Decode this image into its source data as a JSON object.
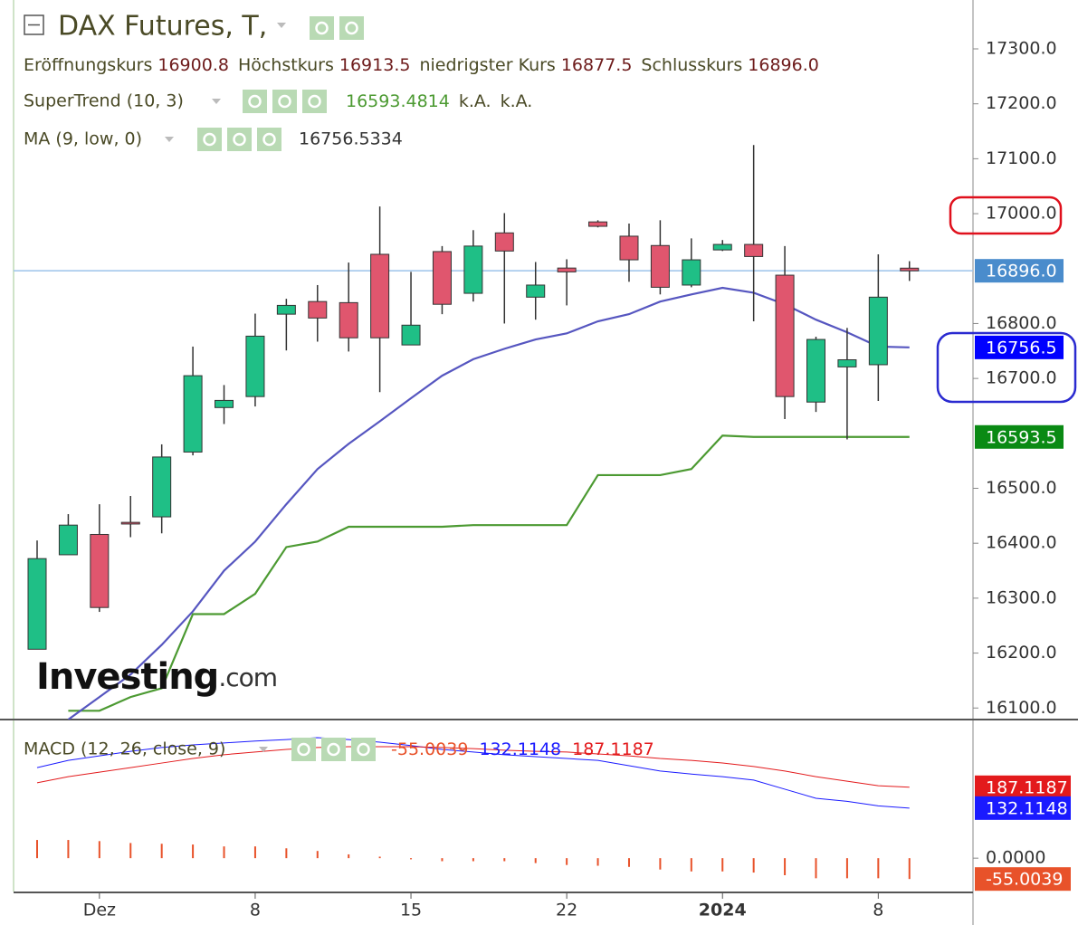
{
  "chart_data": [
    {
      "type": "candlestick",
      "title": "DAX Futures, T,",
      "legend": [
        {
          "name": "Eröffnungskurs",
          "value": "16900.8"
        },
        {
          "name": "Höchstkurs",
          "value": "16913.5"
        },
        {
          "name": "niedrigster Kurs",
          "value": "16877.5"
        },
        {
          "name": "Schlusskurs",
          "value": "16896.0"
        }
      ],
      "categories": [
        null,
        null,
        "Dez",
        null,
        null,
        null,
        null,
        "8",
        null,
        null,
        null,
        null,
        "15",
        null,
        null,
        null,
        null,
        "22",
        null,
        null,
        null,
        null,
        "2024",
        null,
        null,
        null,
        null,
        "8",
        null
      ],
      "open": [
        16207,
        16379,
        16416,
        16438,
        16448,
        16566,
        16647,
        16667,
        16817,
        16840,
        16838,
        16926,
        16761,
        16931,
        16855,
        16965,
        16848,
        16901,
        16985,
        16959,
        16942,
        16870,
        16934,
        16944,
        16888,
        16657,
        16721,
        16725,
        16900.8
      ],
      "high": [
        16405,
        16453,
        16471,
        16486,
        16580,
        16758,
        16688,
        16818,
        16845,
        16870,
        16911,
        17013,
        16894,
        16941,
        16970,
        17001,
        16912,
        16917,
        16988,
        16982,
        16988,
        16955,
        16952,
        17125,
        16941,
        16776,
        16792,
        16926,
        16913.5
      ],
      "low": [
        16207,
        16379,
        16275,
        16411,
        16418,
        16560,
        16617,
        16649,
        16751,
        16767,
        16749,
        16675,
        16761,
        16817,
        16840,
        16800,
        16807,
        16833,
        16975,
        16876,
        16853,
        16866,
        16932,
        16804,
        16626,
        16639,
        16589,
        16659,
        16877.5
      ],
      "close": [
        16372,
        16433,
        16283,
        16435,
        16557,
        16705,
        16660,
        16777,
        16833,
        16810,
        16774,
        16774,
        16797,
        16835,
        16941,
        16932,
        16870,
        16894,
        16977,
        16916,
        16866,
        16916,
        16944,
        16922,
        16667,
        16771,
        16734,
        16848,
        16896
      ],
      "up_color": "#1fbf86",
      "down_color": "#e0566e",
      "lines": [
        {
          "name": "SuperTrend (10, 3)",
          "color": "#4c9a32",
          "extra": [
            "k.A.",
            "k.A."
          ],
          "values": [
            null,
            16095,
            16095,
            16120,
            16136,
            16271,
            16271,
            16308,
            16393,
            16403,
            16430,
            16430,
            16430,
            16430,
            16433,
            16433,
            16433,
            16433,
            16524,
            16524,
            16524,
            16535,
            16596,
            16593.4814,
            16593.4814,
            16593.4814,
            16593.4814,
            16593.4814,
            16593.4814
          ]
        },
        {
          "name": "MA (9, low, 0)",
          "color": "#5656c0",
          "values": [
            null,
            16079,
            16120,
            16161,
            16215,
            16276,
            16350,
            16403,
            16471,
            16535,
            16581,
            16622,
            16664,
            16705,
            16735,
            16754,
            16771,
            16782,
            16804,
            16817,
            16840,
            16853,
            16865,
            16856,
            16835,
            16807,
            16784,
            16758,
            16756.5334
          ]
        }
      ],
      "price_boxes": [
        {
          "value": 16896,
          "label": "16896.0",
          "color": "#4a8ccc"
        },
        {
          "value": 16756.5,
          "label": "16756.5",
          "color": "#0000ff"
        },
        {
          "value": 16593.5,
          "label": "16593.5",
          "color": "#0a8a14"
        }
      ],
      "ylim": [
        16079,
        17389
      ],
      "yticks": [
        {
          "value": 16100,
          "label": "16100.0"
        },
        {
          "value": 16200,
          "label": "16200.0"
        },
        {
          "value": 16300,
          "label": "16300.0"
        },
        {
          "value": 16400,
          "label": "16400.0"
        },
        {
          "value": 16500,
          "label": "16500.0"
        },
        {
          "value": 16700,
          "label": "16700.0"
        },
        {
          "value": 16800,
          "label": "16800.0"
        },
        {
          "value": 17000,
          "label": "17000.0"
        },
        {
          "value": 17100,
          "label": "17100.0"
        },
        {
          "value": 17200,
          "label": "17200.0"
        },
        {
          "value": 17300,
          "label": "17300.0"
        }
      ],
      "watermark": [
        "Investing",
        ".com"
      ]
    },
    {
      "type": "macd",
      "title": "MACD (12, 26, close, 9)",
      "series": [
        {
          "color": "#1a1aff",
          "values": [
            239,
            258,
            270,
            282,
            292,
            299,
            304,
            309,
            313,
            318,
            313,
            306,
            297,
            287,
            280,
            273,
            268,
            263,
            258,
            244,
            230,
            222,
            215,
            206,
            182,
            158,
            150,
            138,
            132.1148
          ]
        },
        {
          "color": "#e31a1c",
          "values": [
            199,
            215,
            227,
            239,
            251,
            263,
            273,
            280,
            287,
            292,
            294,
            294,
            294,
            292,
            289,
            285,
            282,
            280,
            275,
            270,
            263,
            258,
            251,
            242,
            230,
            215,
            203,
            191,
            187.1187
          ]
        }
      ],
      "histogram": {
        "color": "#e8522a",
        "values": [
          48,
          48,
          45,
          40,
          38,
          36,
          31,
          31,
          26,
          19,
          10,
          4,
          -3,
          -8,
          -8,
          -8,
          -13,
          -18,
          -20,
          -23,
          -30,
          -35,
          -35,
          -38,
          -45,
          -53,
          -53,
          -53,
          -55.0039
        ]
      },
      "ylim": [
        -88,
        361
      ],
      "yticks": [
        {
          "value": 0,
          "label": "0.0000"
        }
      ]
    }
  ]
}
